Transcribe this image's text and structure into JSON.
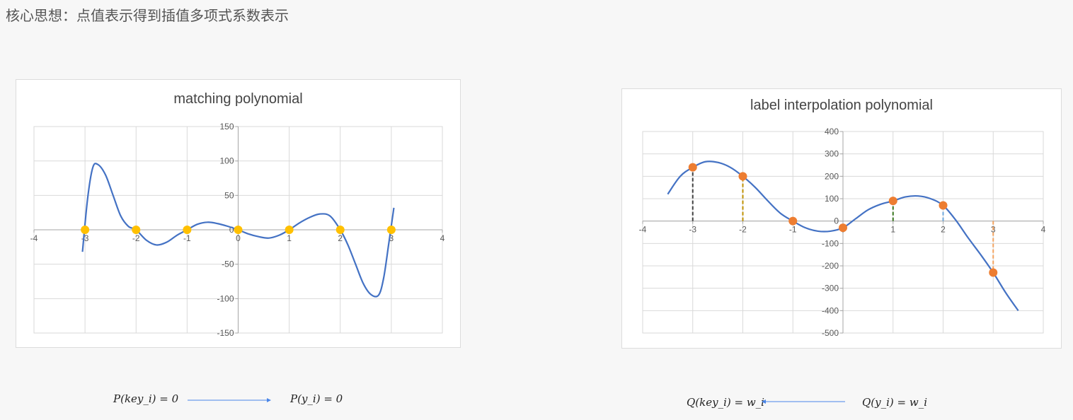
{
  "page": {
    "heading": "核心思想：点值表示得到插值多项式系数表示"
  },
  "formulas": {
    "left_from": "P(key_i) = 0",
    "left_to": "P(y_i) = 0",
    "right_from": "Q(key_i) = w_i",
    "right_to": "Q(y_i) = w_i"
  },
  "chart_data": [
    {
      "type": "line",
      "title": "matching polynomial",
      "xlim": [
        -4,
        4
      ],
      "ylim": [
        -150,
        150
      ],
      "x_ticks": [
        -4,
        -3,
        -2,
        -1,
        0,
        1,
        2,
        3,
        4
      ],
      "y_ticks": [
        -150,
        -100,
        -50,
        0,
        50,
        100,
        150
      ],
      "grid": true,
      "series": [
        {
          "color": "#4472c4",
          "x": [
            -3.05,
            -2.95,
            -2.85,
            -2.75,
            -2.6,
            -2.45,
            -2.3,
            -2.15,
            -2.0,
            -1.8,
            -1.6,
            -1.4,
            -1.2,
            -1.0,
            -0.8,
            -0.6,
            -0.4,
            -0.2,
            0.0,
            0.2,
            0.4,
            0.6,
            0.8,
            1.0,
            1.2,
            1.4,
            1.6,
            1.8,
            2.0,
            2.15,
            2.3,
            2.45,
            2.6,
            2.75,
            2.85,
            2.95,
            3.05
          ],
          "y": [
            -32,
            45,
            90,
            95,
            80,
            50,
            20,
            5,
            0,
            -15,
            -22,
            -18,
            -8,
            0,
            8,
            11,
            9,
            5,
            0,
            -6,
            -10,
            -12,
            -8,
            0,
            10,
            18,
            23,
            20,
            0,
            -22,
            -50,
            -78,
            -94,
            -95,
            -70,
            -20,
            32
          ]
        },
        {
          "color": "#ffc000",
          "marker": "circle",
          "x": [
            -3,
            -2,
            -1,
            0,
            1,
            2,
            3
          ],
          "y": [
            0,
            0,
            0,
            0,
            0,
            0,
            0
          ]
        }
      ]
    },
    {
      "type": "line",
      "title": "label interpolation polynomial",
      "xlim": [
        -4,
        4
      ],
      "ylim": [
        -500,
        400
      ],
      "x_ticks": [
        -4,
        -3,
        -2,
        -1,
        0,
        1,
        2,
        3,
        4
      ],
      "y_ticks": [
        -500,
        -400,
        -300,
        -200,
        -100,
        0,
        100,
        200,
        300,
        400
      ],
      "grid": true,
      "series": [
        {
          "color": "#4472c4",
          "x": [
            -3.5,
            -3.25,
            -3.0,
            -2.75,
            -2.5,
            -2.25,
            -2.0,
            -1.75,
            -1.5,
            -1.25,
            -1.0,
            -0.75,
            -0.5,
            -0.25,
            0.0,
            0.25,
            0.5,
            0.75,
            1.0,
            1.25,
            1.5,
            1.75,
            2.0,
            2.25,
            2.5,
            2.75,
            3.0,
            3.25,
            3.5
          ],
          "y": [
            120,
            200,
            240,
            265,
            262,
            240,
            200,
            150,
            90,
            35,
            0,
            -30,
            -45,
            -45,
            -30,
            10,
            50,
            75,
            90,
            108,
            112,
            100,
            70,
            5,
            -75,
            -150,
            -230,
            -320,
            -400
          ]
        },
        {
          "color": "#ed7d31",
          "marker": "circle",
          "x": [
            -3,
            -2,
            -1,
            0,
            1,
            2,
            3
          ],
          "y": [
            240,
            200,
            0,
            -30,
            90,
            70,
            -230
          ]
        }
      ],
      "drop_lines": [
        {
          "x": -3,
          "y": 240,
          "color": "#404040"
        },
        {
          "x": -2,
          "y": 200,
          "color": "#bf9000"
        },
        {
          "x": 1,
          "y": 90,
          "color": "#38761d"
        },
        {
          "x": 2,
          "y": 70,
          "color": "#6fa8dc"
        },
        {
          "x": 3,
          "y": -230,
          "color": "#f4a460"
        }
      ]
    }
  ]
}
